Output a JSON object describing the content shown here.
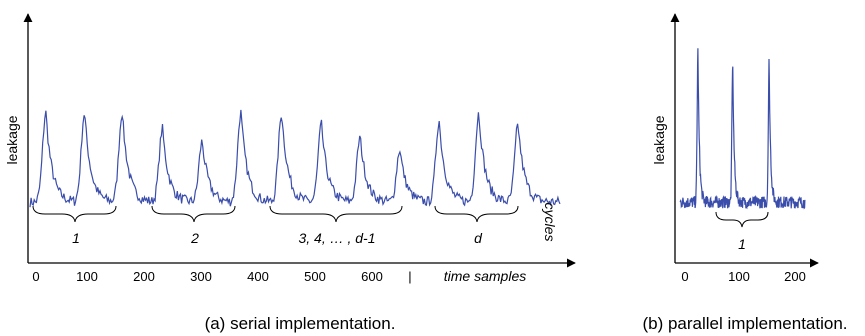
{
  "chart_data": [
    {
      "type": "line",
      "title": "",
      "ylabel": "leakage",
      "xlabel": "time samples",
      "caption": "(a) serial implementation.",
      "x_ticks": [
        "0",
        "100",
        "200",
        "300",
        "400",
        "500",
        "600",
        "|"
      ],
      "xlim": [
        0,
        1000
      ],
      "ylim": [
        0,
        1
      ],
      "color": "#3a4dab",
      "series": [
        {
          "baseline": 0.3,
          "peaks": [
            {
              "x": 30,
              "amp": 0.44
            },
            {
              "x": 103,
              "amp": 0.44
            },
            {
              "x": 174,
              "amp": 0.44
            },
            {
              "x": 250,
              "amp": 0.36
            },
            {
              "x": 325,
              "amp": 0.3
            },
            {
              "x": 398,
              "amp": 0.44
            },
            {
              "x": 475,
              "amp": 0.44
            },
            {
              "x": 550,
              "amp": 0.38
            },
            {
              "x": 623,
              "amp": 0.32
            },
            {
              "x": 698,
              "amp": 0.26
            },
            {
              "x": 772,
              "amp": 0.4
            },
            {
              "x": 847,
              "amp": 0.44
            },
            {
              "x": 921,
              "amp": 0.38
            }
          ]
        }
      ],
      "annotations": {
        "groups": [
          "1",
          "2",
          "3, 4, … , d-1",
          "d"
        ],
        "cycles": "cycles"
      }
    },
    {
      "type": "line",
      "title": "",
      "ylabel": "leakage",
      "xlabel": "",
      "caption": "(b) parallel implementation.",
      "x_ticks": [
        "0",
        "100",
        "200"
      ],
      "xlim": [
        0,
        230
      ],
      "ylim": [
        0,
        1
      ],
      "color": "#3a4dab",
      "series": [
        {
          "baseline": 0.25,
          "peaks": [
            {
              "x": 33,
              "amp": 0.62
            },
            {
              "x": 97,
              "amp": 0.58
            },
            {
              "x": 164,
              "amp": 0.58
            }
          ]
        }
      ],
      "annotations": {
        "groups": [
          "1"
        ]
      }
    }
  ]
}
